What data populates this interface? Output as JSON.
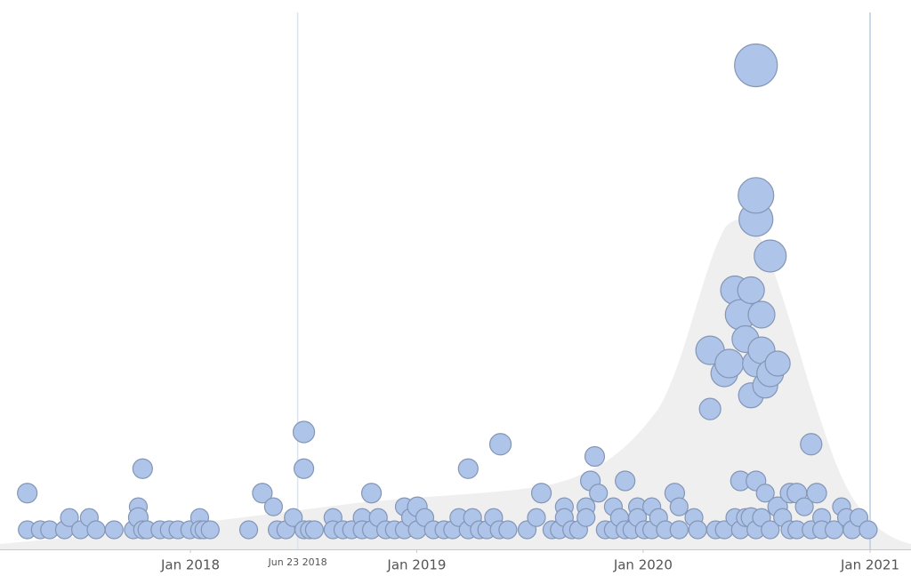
{
  "chart_data": {
    "type": "scatter",
    "xlim": [
      "2017-02-28",
      "2021-03-08"
    ],
    "ylim": [
      0,
      100
    ],
    "xticks": [
      {
        "value": "2018-01-01",
        "label": "Jan 2018"
      },
      {
        "value": "2019-01-01",
        "label": "Jan 2019"
      },
      {
        "value": "2020-01-01",
        "label": "Jan 2020"
      },
      {
        "value": "2021-01-01",
        "label": "Jan 2021"
      }
    ],
    "vlines": [
      {
        "value": "2018-06-23",
        "label": "Jun 23 2018",
        "color": "#dde3ea"
      },
      {
        "value": "2021-01-01",
        "color": "#b8cbe6"
      }
    ],
    "series": [
      {
        "color": "#aec4e8",
        "x": [
          "2017-04-13",
          "2017-04-13",
          "2017-05-04",
          "2017-05-19",
          "2017-06-12",
          "2017-06-20",
          "2017-07-08",
          "2017-07-22",
          "2017-08-02",
          "2017-08-31",
          "2017-10-01",
          "2017-10-09",
          "2017-10-09",
          "2017-10-16",
          "2017-10-16",
          "2017-10-23",
          "2017-11-13",
          "2017-11-28",
          "2017-12-12",
          "2017-12-31",
          "2018-01-16",
          "2018-01-16",
          "2018-01-23",
          "2018-02-02",
          "2018-04-05",
          "2018-04-27",
          "2018-05-15",
          "2018-05-21",
          "2018-06-04",
          "2018-06-16",
          "2018-07-03",
          "2018-07-03",
          "2018-07-03",
          "2018-07-12",
          "2018-07-20",
          "2018-08-19",
          "2018-08-19",
          "2018-09-04",
          "2018-09-18",
          "2018-10-05",
          "2018-10-05",
          "2018-10-20",
          "2018-10-20",
          "2018-10-31",
          "2018-11-12",
          "2018-11-26",
          "2018-12-12",
          "2018-12-12",
          "2018-12-22",
          "2019-01-02",
          "2019-01-02",
          "2019-01-14",
          "2019-01-28",
          "2019-02-14",
          "2019-02-28",
          "2019-03-10",
          "2019-03-25",
          "2019-03-25",
          "2019-04-01",
          "2019-04-12",
          "2019-04-24",
          "2019-05-05",
          "2019-05-16",
          "2019-05-14",
          "2019-05-28",
          "2019-06-28",
          "2019-07-13",
          "2019-07-21",
          "2019-08-07",
          "2019-08-19",
          "2019-08-27",
          "2019-08-27",
          "2019-09-08",
          "2019-09-19",
          "2019-10-01",
          "2019-10-01",
          "2019-10-08",
          "2019-10-15",
          "2019-10-21",
          "2019-11-01",
          "2019-11-14",
          "2019-11-14",
          "2019-11-24",
          "2019-12-03",
          "2019-12-03",
          "2019-12-14",
          "2019-12-23",
          "2019-12-23",
          "2020-01-03",
          "2020-01-15",
          "2020-01-15",
          "2020-01-26",
          "2020-02-06",
          "2020-02-21",
          "2020-02-28",
          "2020-02-28",
          "2020-03-23",
          "2020-03-29",
          "2020-04-18",
          "2020-04-18",
          "2020-04-27",
          "2020-05-11",
          "2020-05-11",
          "2020-05-19",
          "2020-05-28",
          "2020-05-28",
          "2020-06-06",
          "2020-06-06",
          "2020-06-06",
          "2020-06-14",
          "2020-06-14",
          "2020-06-23",
          "2020-06-23",
          "2020-06-23",
          "2020-07-01",
          "2020-07-01",
          "2020-07-01",
          "2020-07-01",
          "2020-07-01",
          "2020-07-01",
          "2020-07-10",
          "2020-07-10",
          "2020-07-10",
          "2020-07-16",
          "2020-07-16",
          "2020-07-24",
          "2020-07-24",
          "2020-07-24",
          "2020-08-05",
          "2020-08-05",
          "2020-08-13",
          "2020-08-25",
          "2020-08-25",
          "2020-09-05",
          "2020-09-05",
          "2020-09-17",
          "2020-09-28",
          "2020-09-28",
          "2020-10-07",
          "2020-10-15",
          "2020-10-15",
          "2020-11-04",
          "2020-11-16",
          "2020-11-24",
          "2020-12-03",
          "2020-12-14",
          "2020-12-29"
        ],
        "y": [
          4,
          11.5,
          4,
          4,
          4,
          6.5,
          4,
          6.5,
          4,
          4,
          4,
          8.7,
          6.5,
          16.5,
          4,
          4,
          4,
          4,
          4,
          4,
          6.5,
          4,
          4,
          4,
          4,
          11.5,
          8.7,
          4,
          4,
          6.5,
          24,
          16.5,
          4,
          4,
          4,
          6.5,
          4,
          4,
          4,
          6.5,
          4,
          11.5,
          4,
          6.5,
          4,
          4,
          8.7,
          4,
          6.5,
          8.7,
          4,
          6.5,
          4,
          4,
          4,
          6.5,
          16.5,
          4,
          6.5,
          4,
          4,
          6.5,
          21.5,
          4,
          4,
          4,
          6.5,
          11.5,
          4,
          4,
          8.7,
          6.5,
          4,
          4,
          8.7,
          6.5,
          14,
          19,
          11.5,
          4,
          8.7,
          4,
          6.5,
          14,
          4,
          4,
          8.7,
          6.5,
          4,
          8.7,
          4,
          6.5,
          4,
          11.5,
          8.7,
          4,
          6.5,
          4,
          28.7,
          40.7,
          4,
          36,
          4,
          38,
          6.5,
          53,
          14,
          48,
          4,
          43,
          6.5,
          31.5,
          53,
          6.5,
          38,
          67.5,
          99,
          72.4,
          14,
          4,
          48,
          40.7,
          6.5,
          33.5,
          11.5,
          36,
          60,
          4,
          38,
          8.7,
          6.5,
          11.5,
          4,
          11.5,
          4,
          8.7,
          21.5,
          4,
          11.5,
          6.5,
          4,
          4,
          8.7,
          6.5,
          4,
          6.5,
          4
        ],
        "size": [
          10,
          11,
          10,
          10,
          10,
          10,
          10,
          10,
          10,
          10,
          10,
          10,
          11,
          11,
          10,
          10,
          10,
          10,
          10,
          10,
          10,
          10,
          10,
          10,
          10,
          11,
          10,
          10,
          10,
          10,
          12,
          11,
          10,
          10,
          10,
          10,
          10,
          10,
          10,
          10,
          10,
          11,
          10,
          10,
          10,
          10,
          10,
          10,
          10,
          11,
          10,
          10,
          10,
          10,
          10,
          10,
          11,
          10,
          10,
          10,
          10,
          10,
          12,
          10,
          10,
          10,
          10,
          11,
          10,
          10,
          10,
          10,
          10,
          10,
          10,
          10,
          11,
          11,
          10,
          10,
          10,
          10,
          10,
          11,
          10,
          10,
          10,
          10,
          10,
          10,
          10,
          10,
          10,
          11,
          10,
          10,
          10,
          10,
          12,
          16,
          10,
          15,
          10,
          16,
          10,
          16,
          11,
          17,
          10,
          15,
          10,
          14,
          15,
          11,
          15,
          19,
          24,
          20,
          11,
          10,
          15,
          15,
          10,
          14,
          10,
          15,
          18,
          10,
          14,
          11,
          10,
          11,
          10,
          11,
          10,
          10,
          12,
          10,
          11,
          10,
          10,
          10,
          10,
          10,
          10,
          10,
          10
        ]
      }
    ]
  }
}
